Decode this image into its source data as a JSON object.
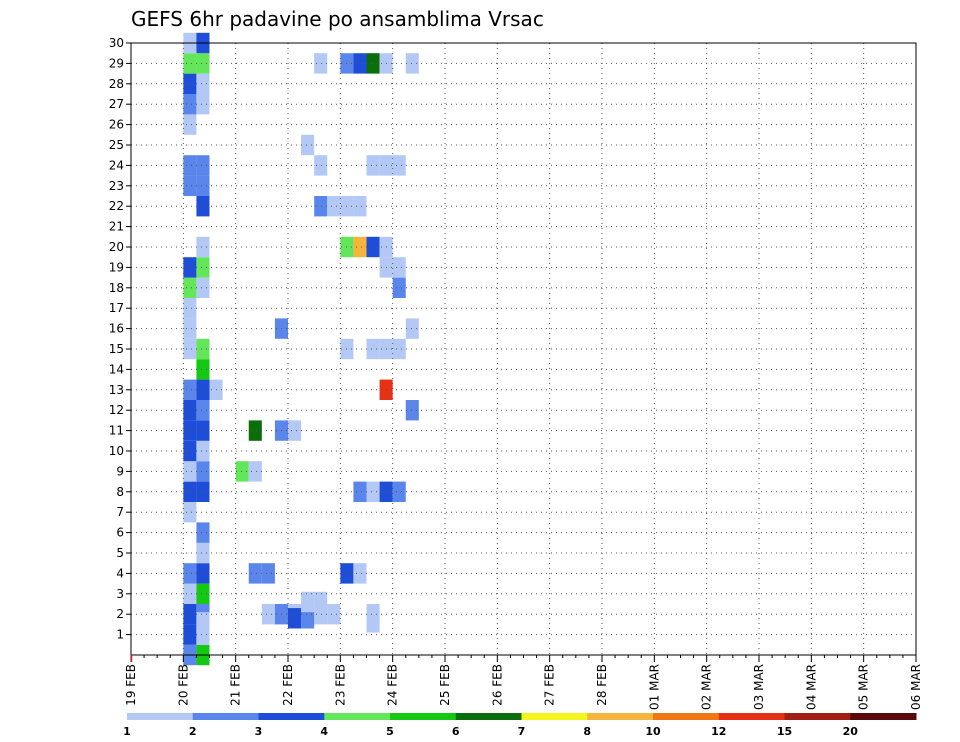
{
  "chart_data": {
    "type": "heatmap",
    "title": "GEFS 6hr padavine po ansamblima Vrsac",
    "x_tick_labels": [
      "19 FEB",
      "20 FEB",
      "21 FEB",
      "22 FEB",
      "23 FEB",
      "24 FEB",
      "25 FEB",
      "26 FEB",
      "27 FEB",
      "28 FEB",
      "01 MAR",
      "02 MAR",
      "03 MAR",
      "04 MAR",
      "05 MAR",
      "06 MAR"
    ],
    "y_tick_labels": [
      "1",
      "2",
      "3",
      "4",
      "5",
      "6",
      "7",
      "8",
      "9",
      "10",
      "11",
      "12",
      "13",
      "14",
      "15",
      "16",
      "17",
      "18",
      "19",
      "20",
      "21",
      "22",
      "23",
      "24",
      "25",
      "26",
      "27",
      "28",
      "29",
      "30"
    ],
    "x_range_days": [
      0,
      15
    ],
    "y_range": [
      0,
      30
    ],
    "time_step_hours": 6,
    "grid": true,
    "colorbar": {
      "labels": [
        "1",
        "2",
        "3",
        "4",
        "5",
        "6",
        "7",
        "8",
        "10",
        "12",
        "15",
        "20"
      ],
      "colors": [
        "#b4c8f5",
        "#5a86ec",
        "#1e4ed8",
        "#64e65a",
        "#14c814",
        "#0a6e0a",
        "#f5f51e",
        "#f5b43c",
        "#f07814",
        "#e63214",
        "#a01e14",
        "#5a0a0a"
      ]
    },
    "cells": [
      [
        1,
        0,
        2
      ],
      [
        1.25,
        0,
        5
      ],
      [
        1,
        1,
        3
      ],
      [
        1.25,
        1,
        1
      ],
      [
        1,
        2,
        3
      ],
      [
        1.25,
        2,
        2
      ],
      [
        1.25,
        1.6,
        1
      ],
      [
        3.25,
        2,
        1
      ],
      [
        3,
        2,
        1
      ],
      [
        3.5,
        2,
        1
      ],
      [
        3.75,
        2,
        1
      ],
      [
        2.5,
        2,
        1
      ],
      [
        2.75,
        2,
        2
      ],
      [
        3,
        1.8,
        3
      ],
      [
        3.25,
        1.8,
        2
      ],
      [
        3.25,
        2.6,
        1
      ],
      [
        3.5,
        2.6,
        1
      ],
      [
        4.5,
        2,
        1
      ],
      [
        4.5,
        1.6,
        1
      ],
      [
        1,
        3,
        1
      ],
      [
        1.25,
        3,
        5
      ],
      [
        1,
        4,
        2
      ],
      [
        1.25,
        4,
        3
      ],
      [
        2.25,
        4,
        2
      ],
      [
        2.5,
        4,
        2
      ],
      [
        4,
        4,
        3
      ],
      [
        4.25,
        4,
        1
      ],
      [
        1.25,
        5,
        1
      ],
      [
        1.25,
        6,
        2
      ],
      [
        1,
        7,
        1
      ],
      [
        1,
        8,
        3
      ],
      [
        1.25,
        8,
        3
      ],
      [
        4.25,
        8,
        2
      ],
      [
        4.5,
        8,
        1
      ],
      [
        4.75,
        8,
        3
      ],
      [
        5,
        8,
        2
      ],
      [
        1,
        9,
        1
      ],
      [
        1.25,
        9,
        2
      ],
      [
        2,
        9,
        4
      ],
      [
        2.25,
        9,
        1
      ],
      [
        1,
        10,
        3
      ],
      [
        1.25,
        10,
        1
      ],
      [
        1,
        11,
        3
      ],
      [
        1.25,
        11,
        3
      ],
      [
        2.25,
        11,
        6
      ],
      [
        2.75,
        11,
        2
      ],
      [
        3,
        11,
        1
      ],
      [
        1,
        12,
        3
      ],
      [
        1.25,
        12,
        2
      ],
      [
        5.25,
        12,
        2
      ],
      [
        1,
        13,
        2
      ],
      [
        1.25,
        13,
        3
      ],
      [
        1.5,
        13,
        1
      ],
      [
        4.75,
        13,
        10
      ],
      [
        1.25,
        14,
        5
      ],
      [
        1,
        15,
        1
      ],
      [
        1.25,
        15,
        4
      ],
      [
        4,
        15,
        1
      ],
      [
        4.5,
        15,
        1
      ],
      [
        4.75,
        15,
        1
      ],
      [
        5,
        15,
        1
      ],
      [
        1,
        16,
        1
      ],
      [
        2.75,
        16,
        2
      ],
      [
        5.25,
        16,
        1
      ],
      [
        1,
        17,
        1
      ],
      [
        1,
        18,
        4
      ],
      [
        1.25,
        18,
        1
      ],
      [
        5,
        18,
        2
      ],
      [
        1,
        19,
        3
      ],
      [
        1.25,
        19,
        4
      ],
      [
        4.75,
        19,
        1
      ],
      [
        5,
        19,
        1
      ],
      [
        1.25,
        20,
        1
      ],
      [
        4,
        20,
        4
      ],
      [
        4.25,
        20,
        8
      ],
      [
        4.5,
        20,
        3
      ],
      [
        4.75,
        20,
        1
      ],
      [
        1.25,
        22,
        3
      ],
      [
        3.5,
        22,
        2
      ],
      [
        3.75,
        22,
        1
      ],
      [
        4,
        22,
        1
      ],
      [
        4.25,
        22,
        1
      ],
      [
        1,
        23,
        2
      ],
      [
        1.25,
        23,
        2
      ],
      [
        1,
        24,
        2
      ],
      [
        1.25,
        24,
        2
      ],
      [
        3.5,
        24,
        1
      ],
      [
        4.5,
        24,
        1
      ],
      [
        4.75,
        24,
        1
      ],
      [
        5,
        24,
        1
      ],
      [
        3.25,
        25,
        1
      ],
      [
        1,
        26,
        1
      ],
      [
        1,
        27,
        2
      ],
      [
        1.25,
        27,
        1
      ],
      [
        1,
        28,
        3
      ],
      [
        1.25,
        28,
        1
      ],
      [
        1,
        29,
        4
      ],
      [
        1.25,
        29,
        4
      ],
      [
        3.5,
        29,
        1
      ],
      [
        4,
        29,
        2
      ],
      [
        4.25,
        29,
        3
      ],
      [
        4.5,
        29,
        6
      ],
      [
        4.75,
        29,
        1
      ],
      [
        5.25,
        29,
        1
      ],
      [
        1,
        30,
        1
      ],
      [
        1.25,
        30,
        3
      ]
    ]
  }
}
